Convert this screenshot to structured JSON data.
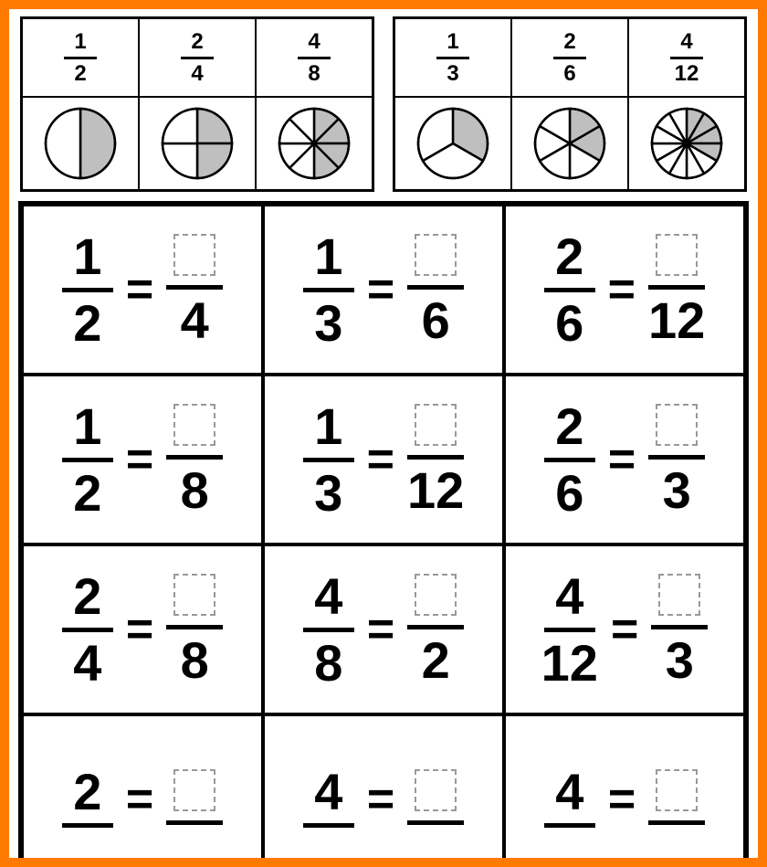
{
  "colors": {
    "border": "#ff7a00",
    "line": "#000000",
    "shade": "#bfbfbf",
    "blank_dash": "#999999",
    "bg": "#ffffff"
  },
  "pie_radius": 38,
  "examples": [
    {
      "fractions": [
        {
          "num": "1",
          "den": "2",
          "slices": 2,
          "shaded": 1
        },
        {
          "num": "2",
          "den": "4",
          "slices": 4,
          "shaded": 2
        },
        {
          "num": "4",
          "den": "8",
          "slices": 8,
          "shaded": 4
        }
      ]
    },
    {
      "fractions": [
        {
          "num": "1",
          "den": "3",
          "slices": 3,
          "shaded": 1
        },
        {
          "num": "2",
          "den": "6",
          "slices": 6,
          "shaded": 2
        },
        {
          "num": "4",
          "den": "12",
          "slices": 12,
          "shaded": 4
        }
      ]
    }
  ],
  "problems": [
    {
      "left_num": "1",
      "left_den": "2",
      "right_den": "4"
    },
    {
      "left_num": "1",
      "left_den": "3",
      "right_den": "6"
    },
    {
      "left_num": "2",
      "left_den": "6",
      "right_den": "12"
    },
    {
      "left_num": "1",
      "left_den": "2",
      "right_den": "8"
    },
    {
      "left_num": "1",
      "left_den": "3",
      "right_den": "12"
    },
    {
      "left_num": "2",
      "left_den": "6",
      "right_den": "3"
    },
    {
      "left_num": "2",
      "left_den": "4",
      "right_den": "8"
    },
    {
      "left_num": "4",
      "left_den": "8",
      "right_den": "2"
    },
    {
      "left_num": "4",
      "left_den": "12",
      "right_den": "3"
    },
    {
      "left_num": "2",
      "left_den": "",
      "right_den": ""
    },
    {
      "left_num": "4",
      "left_den": "",
      "right_den": ""
    },
    {
      "left_num": "4",
      "left_den": "",
      "right_den": ""
    }
  ],
  "equals": "="
}
